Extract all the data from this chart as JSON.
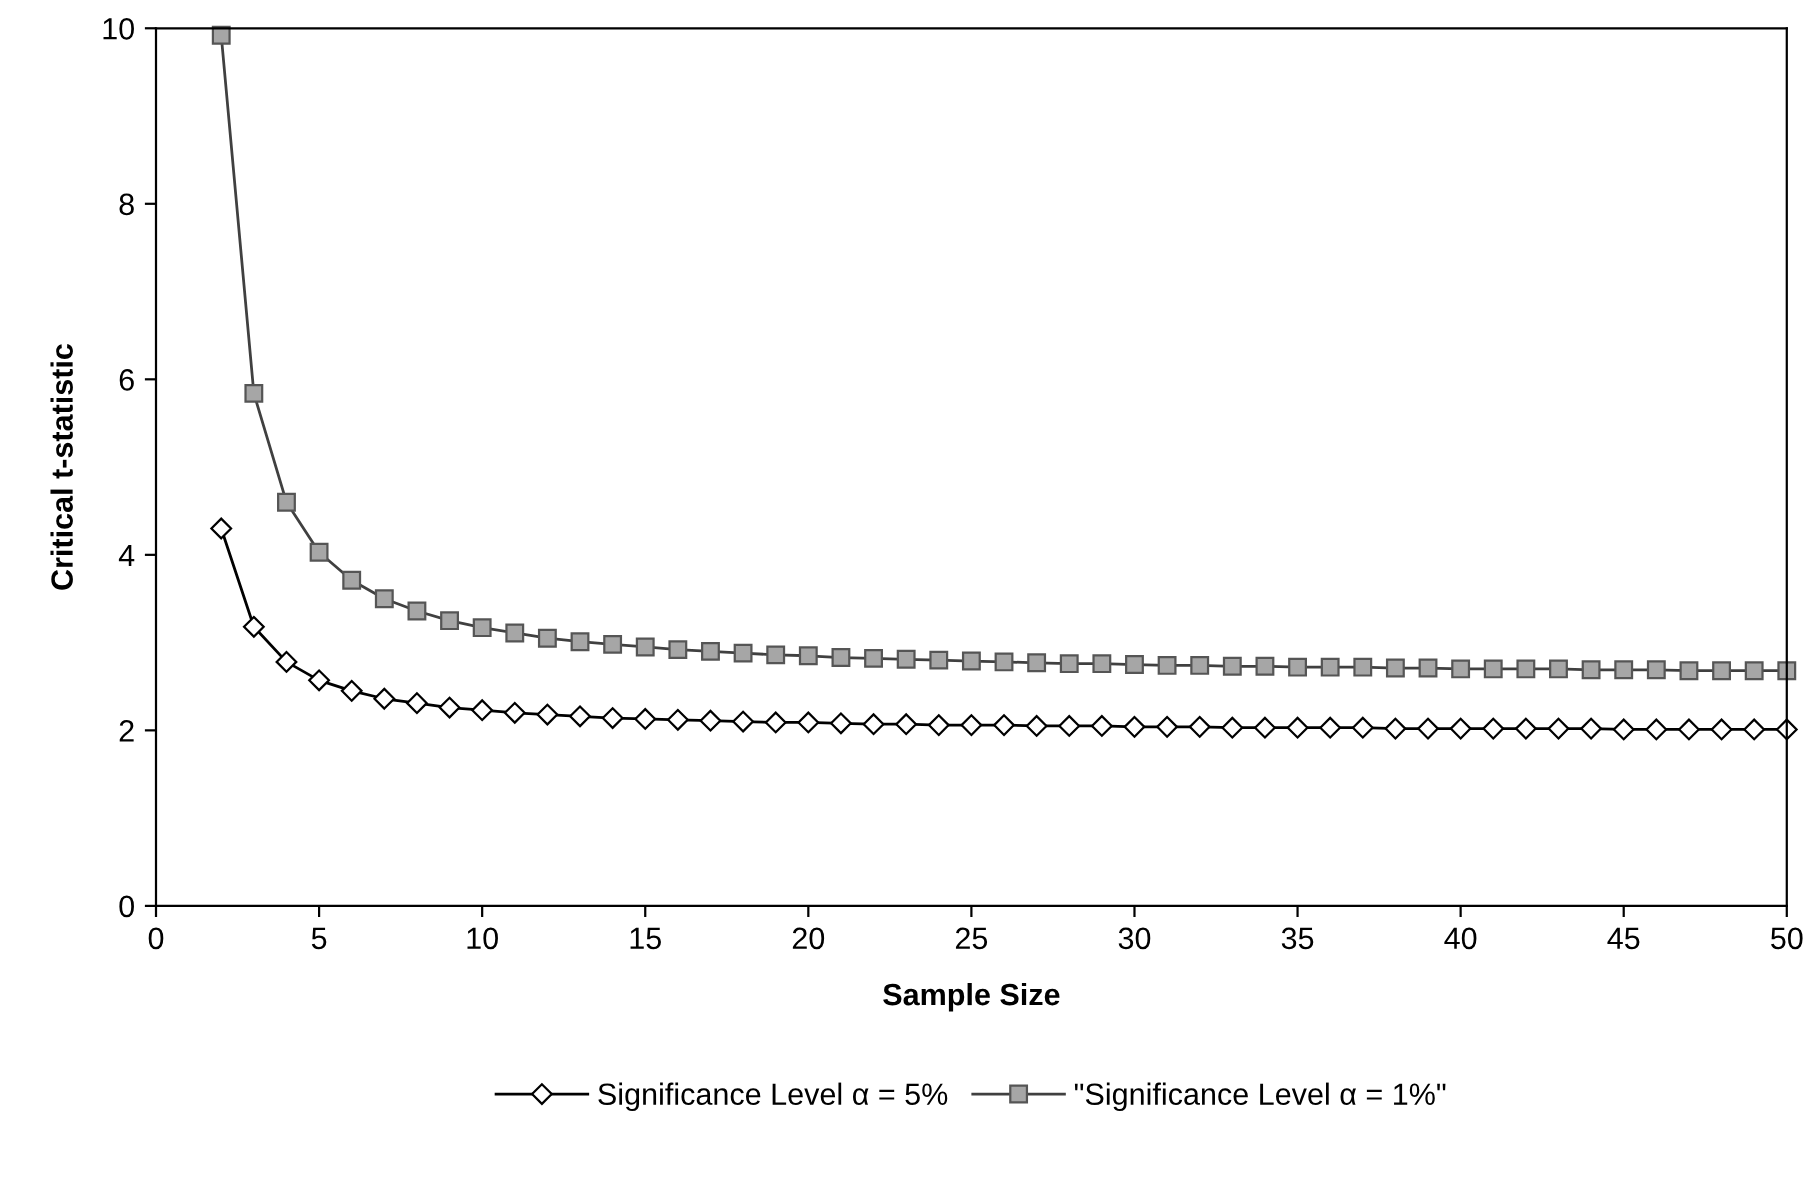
{
  "chart_data": {
    "type": "line",
    "xlabel": "Sample Size",
    "ylabel": "Critical t-statistic",
    "x": [
      2,
      3,
      4,
      5,
      6,
      7,
      8,
      9,
      10,
      11,
      12,
      13,
      14,
      15,
      16,
      17,
      18,
      19,
      20,
      21,
      22,
      23,
      24,
      25,
      26,
      27,
      28,
      29,
      30,
      31,
      32,
      33,
      34,
      35,
      36,
      37,
      38,
      39,
      40,
      41,
      42,
      43,
      44,
      45,
      46,
      47,
      48,
      49,
      50
    ],
    "series": [
      {
        "name": "Significance Level α = 5%",
        "color": "#000000",
        "marker": "diamond",
        "values": [
          4.3,
          3.18,
          2.78,
          2.57,
          2.45,
          2.36,
          2.31,
          2.26,
          2.23,
          2.2,
          2.18,
          2.16,
          2.14,
          2.13,
          2.12,
          2.11,
          2.1,
          2.09,
          2.09,
          2.08,
          2.07,
          2.07,
          2.06,
          2.06,
          2.06,
          2.05,
          2.05,
          2.05,
          2.04,
          2.04,
          2.04,
          2.03,
          2.03,
          2.03,
          2.03,
          2.03,
          2.02,
          2.02,
          2.02,
          2.02,
          2.02,
          2.02,
          2.02,
          2.01,
          2.01,
          2.01,
          2.01,
          2.01,
          2.01
        ]
      },
      {
        "name": "\"Significance Level α = 1%\"",
        "color": "#a6a6a6",
        "marker": "square",
        "values": [
          9.92,
          5.84,
          4.6,
          4.03,
          3.71,
          3.5,
          3.36,
          3.25,
          3.17,
          3.11,
          3.05,
          3.01,
          2.98,
          2.95,
          2.92,
          2.9,
          2.88,
          2.86,
          2.85,
          2.83,
          2.82,
          2.81,
          2.8,
          2.79,
          2.78,
          2.77,
          2.76,
          2.76,
          2.75,
          2.74,
          2.74,
          2.73,
          2.73,
          2.72,
          2.72,
          2.72,
          2.71,
          2.71,
          2.7,
          2.7,
          2.7,
          2.7,
          2.69,
          2.69,
          2.69,
          2.68,
          2.68,
          2.68,
          2.68
        ]
      }
    ],
    "xlim": [
      0,
      50
    ],
    "xticks": [
      0,
      5,
      10,
      15,
      20,
      25,
      30,
      35,
      40,
      45,
      50
    ],
    "ylim": [
      0,
      10
    ],
    "yticks": [
      0,
      2,
      4,
      6,
      8,
      10
    ],
    "grid": false,
    "legend": "bottom",
    "line_style": "solid"
  }
}
